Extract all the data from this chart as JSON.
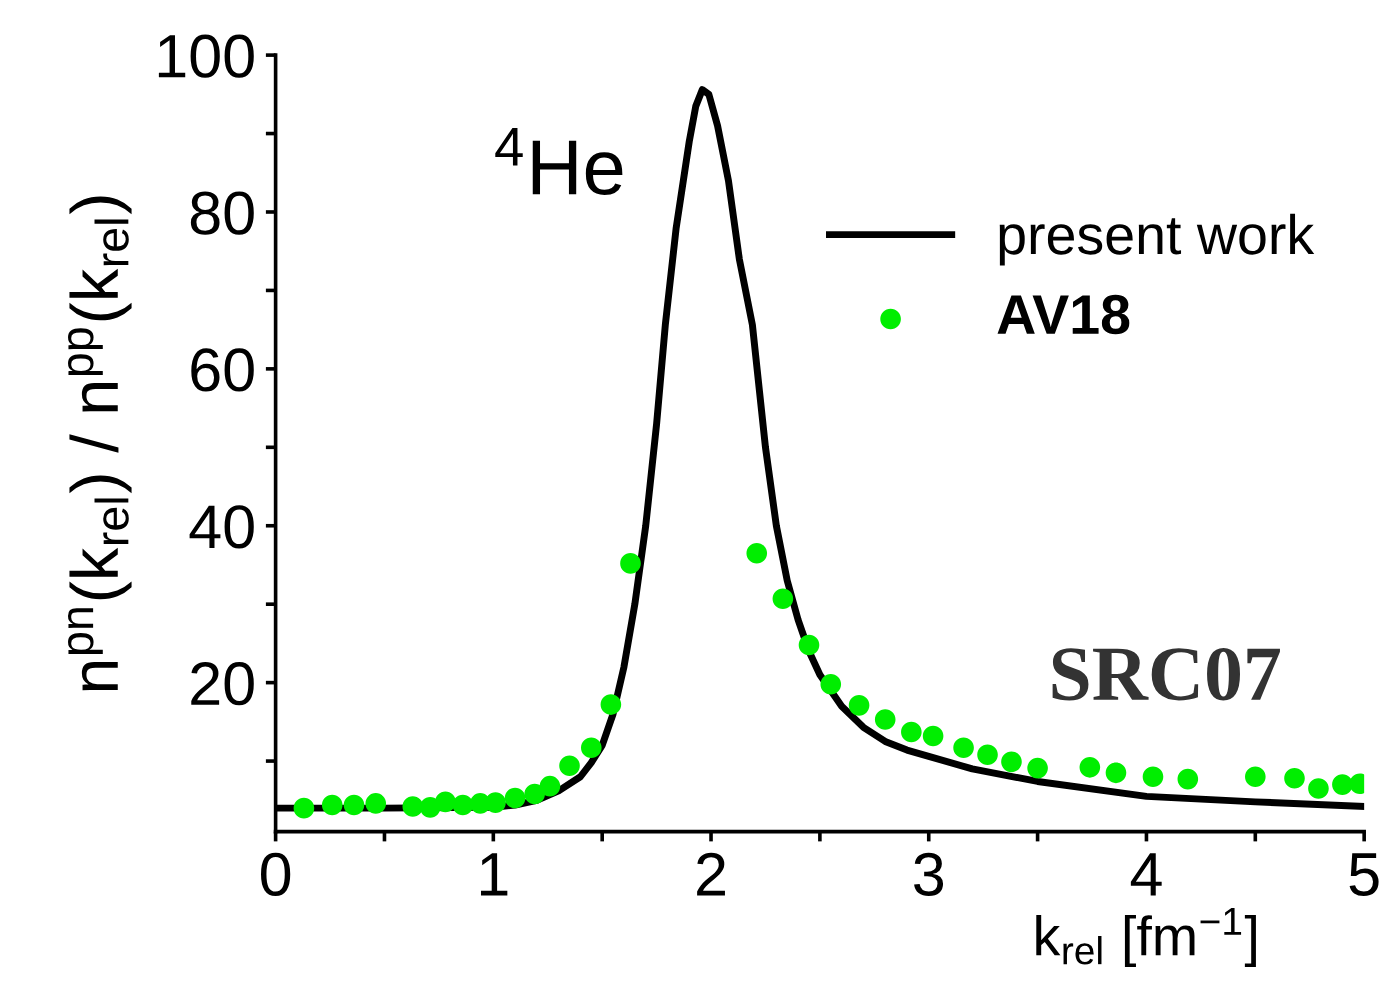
{
  "chart_data": {
    "type": "line",
    "xlabel": "k$_{rel}$ [fm$^{−1}$]",
    "ylabel": "n$^{pn}$(k$_{rel}$) / n$^{pp}$(k$_{rel}$)",
    "annotations": [
      "$^{4}$He",
      "SRC07"
    ],
    "xlim": [
      0,
      5
    ],
    "ylim": [
      1,
      100
    ],
    "xticks": [
      0,
      {
        "value": 0.5,
        "label": null
      },
      1,
      {
        "value": 1.5,
        "label": null
      },
      2,
      {
        "value": 2.5,
        "label": null
      },
      3,
      {
        "value": 3.5,
        "label": null
      },
      4,
      {
        "value": 4.5,
        "label": null
      },
      5
    ],
    "yticks": [
      {
        "value": 10,
        "label": null
      },
      20,
      {
        "value": 30,
        "label": null
      },
      40,
      {
        "value": 50,
        "label": null
      },
      60,
      {
        "value": 70,
        "label": null
      },
      80,
      {
        "value": 90,
        "label": null
      },
      100
    ],
    "grid": false,
    "legend": "top right",
    "series": [
      {
        "name": "present work",
        "color": "#000000",
        "marker": "none",
        "line_style": "solid",
        "x": [
          0,
          0.5,
          1.0,
          1.1,
          1.2,
          1.3,
          1.4,
          1.45,
          1.5,
          1.55,
          1.6,
          1.65,
          1.7,
          1.75,
          1.79,
          1.84,
          1.9,
          1.93,
          1.96,
          1.99,
          2.03,
          2.08,
          2.13,
          2.19,
          2.25,
          2.3,
          2.35,
          2.4,
          2.45,
          2.5,
          2.6,
          2.7,
          2.8,
          2.9,
          3.0,
          3.2,
          3.5,
          4.0,
          4.5,
          5.0
        ],
        "values": [
          4.0,
          4.0,
          4.1,
          4.4,
          5,
          6.2,
          8,
          9.8,
          12,
          16,
          22,
          30,
          40,
          53,
          65.6,
          78,
          89,
          93.5,
          95.6,
          95,
          91,
          84,
          74,
          65.6,
          50,
          40,
          33,
          28,
          24,
          21,
          17,
          14.3,
          12.5,
          11.4,
          10.6,
          9.0,
          7.4,
          5.5,
          4.8,
          4.2
        ]
      },
      {
        "name": "AV18",
        "type": "scatter",
        "color": "#00ee00",
        "marker": "circle",
        "x": [
          0.13,
          0.26,
          0.36,
          0.46,
          0.63,
          0.71,
          0.78,
          0.86,
          0.94,
          1.01,
          1.1,
          1.19,
          1.26,
          1.35,
          1.45,
          1.54,
          1.63,
          2.21,
          2.33,
          2.45,
          2.55,
          2.68,
          2.8,
          2.92,
          3.02,
          3.16,
          3.27,
          3.38,
          3.5,
          3.74,
          3.86,
          4.03,
          4.19,
          4.5,
          4.68,
          4.79,
          4.9,
          4.98
        ],
        "values": [
          4.0,
          4.4,
          4.4,
          4.6,
          4.2,
          4.1,
          4.8,
          4.4,
          4.6,
          4.7,
          5.3,
          5.8,
          6.8,
          9.4,
          11.7,
          17.2,
          35.2,
          36.5,
          30.7,
          24.8,
          19.8,
          17.1,
          15.3,
          13.7,
          13.2,
          11.7,
          10.8,
          9.9,
          9.1,
          9.2,
          8.5,
          8.0,
          7.7,
          8.0,
          7.8,
          6.5,
          7.0,
          7.1
        ]
      }
    ]
  }
}
